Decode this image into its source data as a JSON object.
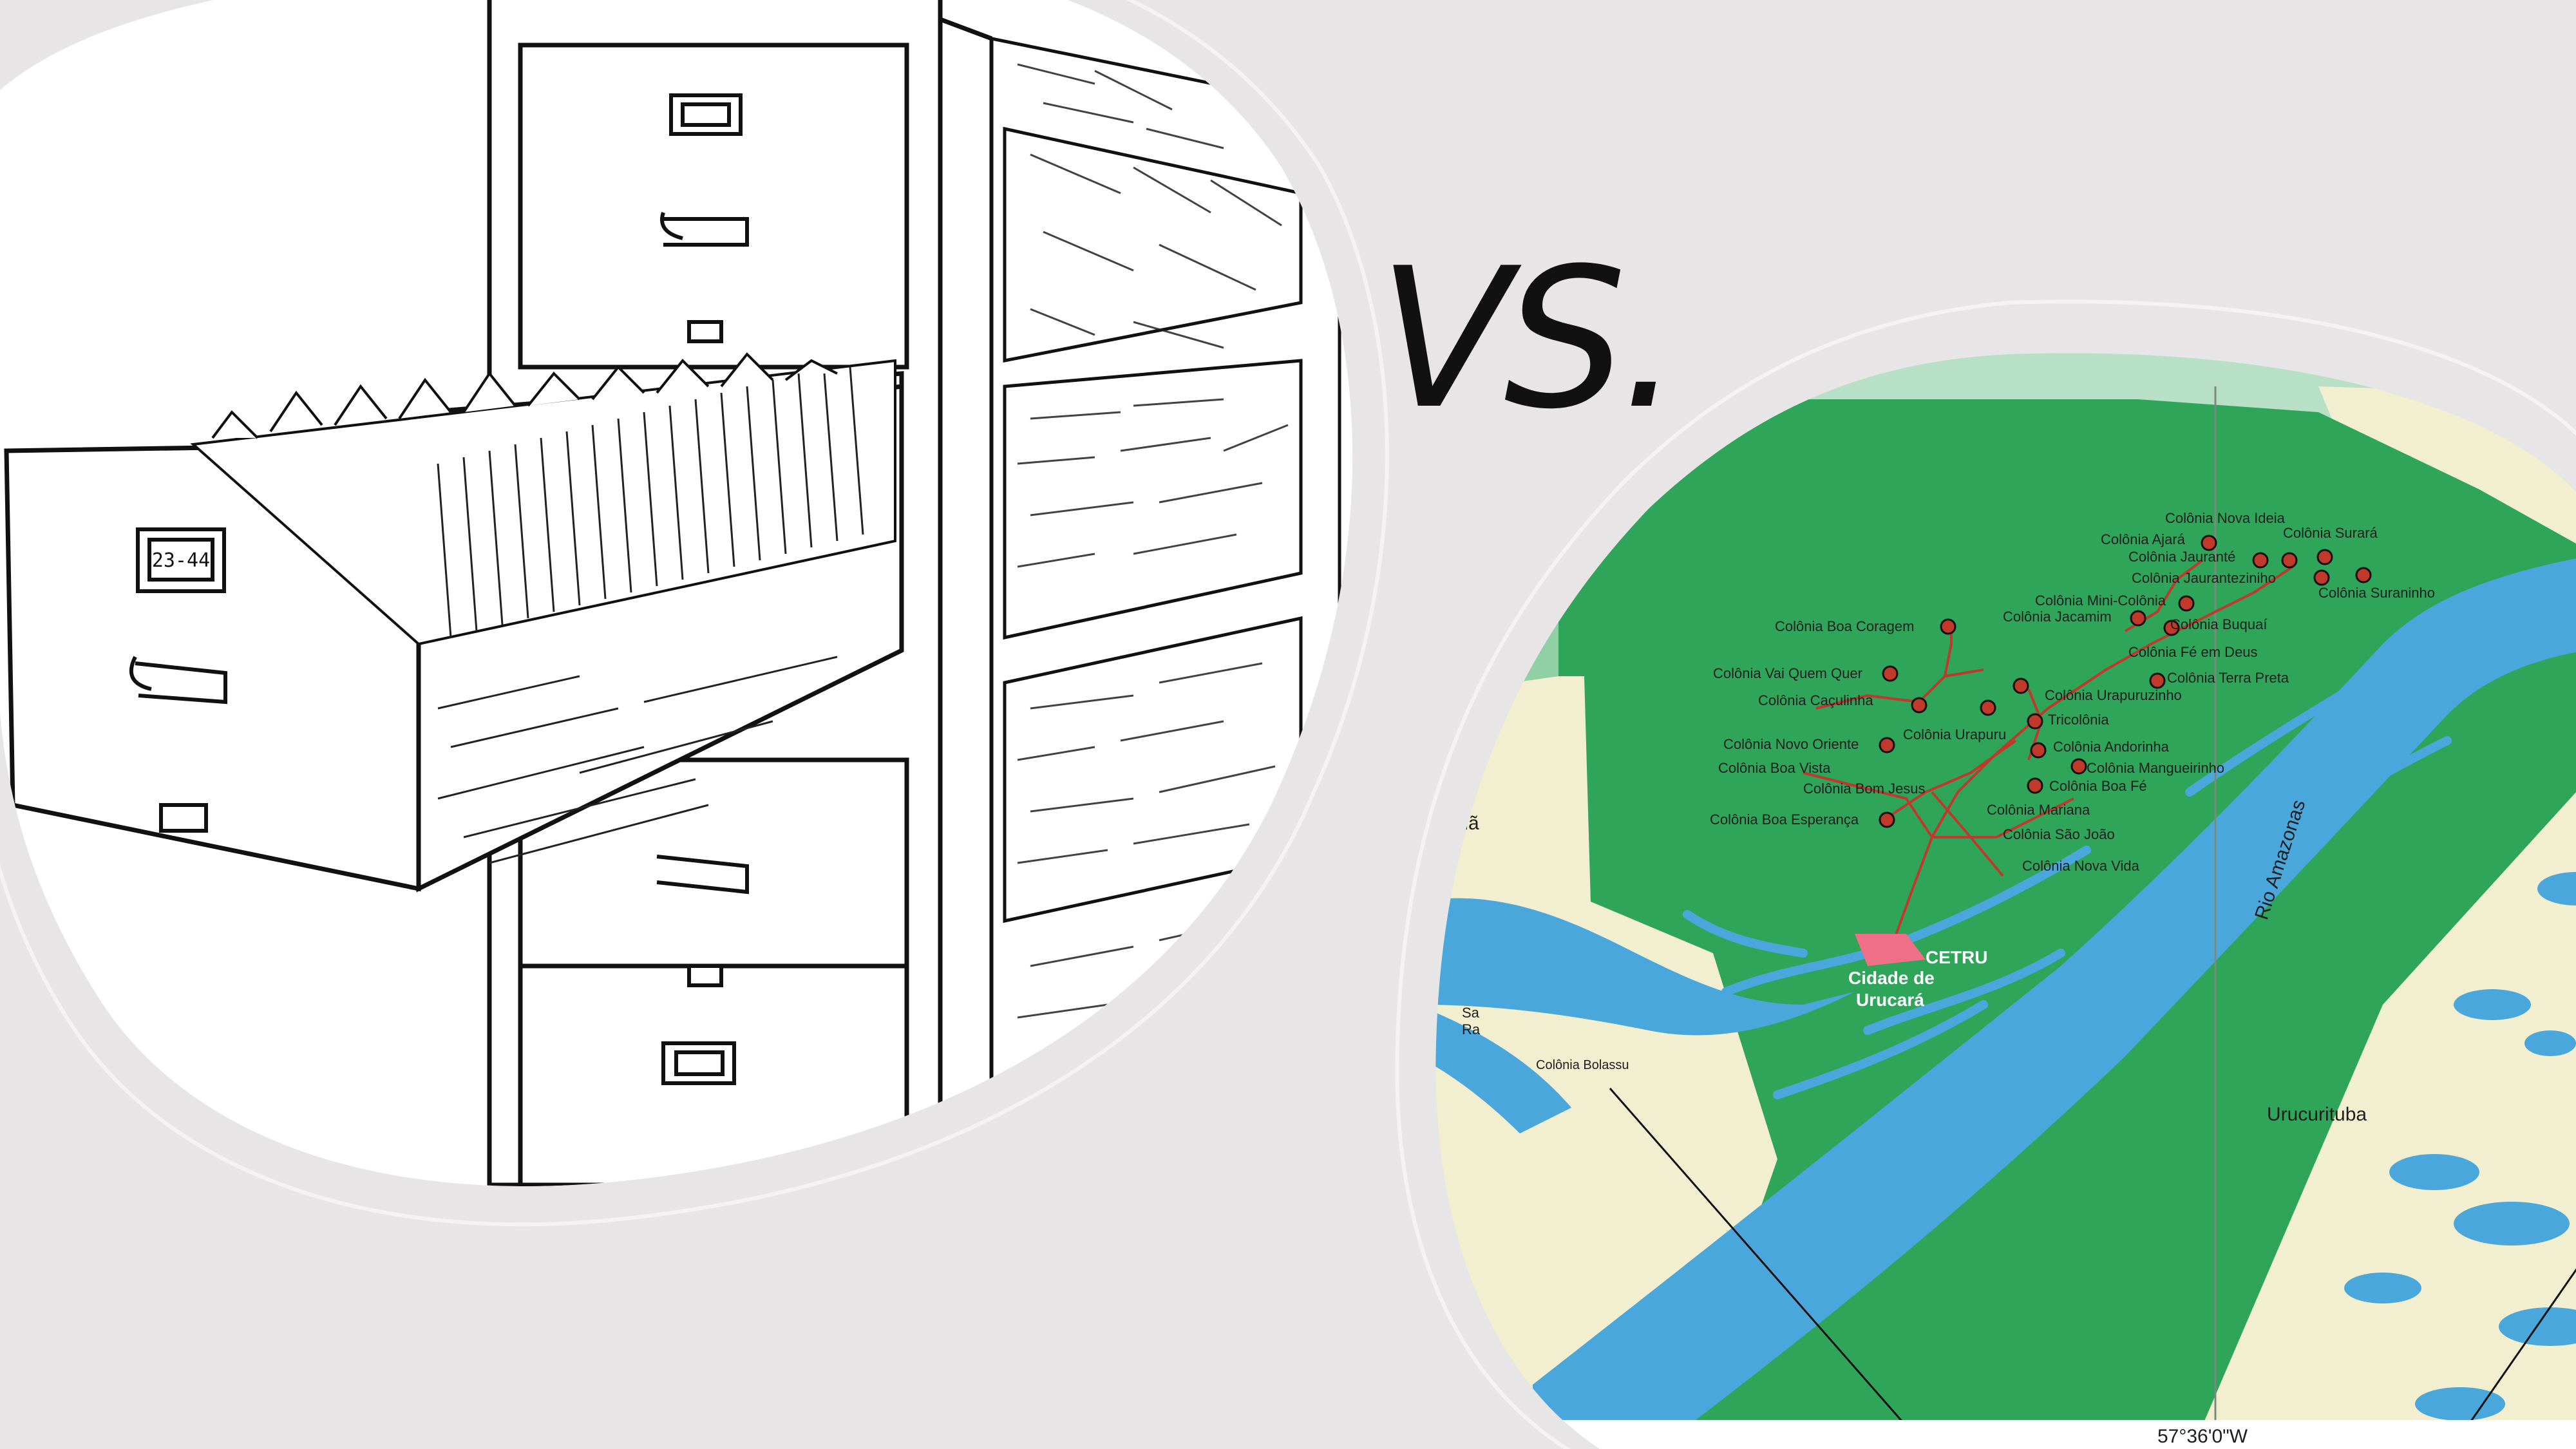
{
  "heading": {
    "vs_text": "VS."
  },
  "colors": {
    "background": "#e7e5e6",
    "forest_green": "#2fa55a",
    "river_blue": "#4aa7dc",
    "land_cream": "#f1efcf",
    "road_red": "#c0392b"
  },
  "left_image": {
    "drawer_tag": "23-44",
    "subject": "filing-cabinet"
  },
  "map": {
    "colonies": [
      "Colônia Nova Ideia",
      "Colônia Ajará",
      "Colônia Jauranté",
      "Colônia Surará",
      "Colônia Jauranteziniho",
      "Colônia Mini-Colônia",
      "Colônia Jacamim",
      "Colônia Buquaí",
      "Colônia Suraninho",
      "Colônia Boa Coragem",
      "Colônia Fé em Deus",
      "Colônia Vai Quem Quer",
      "Colônia Terra Preta",
      "Colônia Caçulinha",
      "Colônia Urapuruzinho",
      "Tricolônia",
      "Colônia Urapuru",
      "Colônia Novo Oriente",
      "Colônia Andorinha",
      "Colônia Boa Vista",
      "Colônia Mangueirinho",
      "Colônia Bom Jesus",
      "Colônia Boa Fé",
      "Colônia Mariana",
      "Colônia Boa Esperança",
      "Colônia São João",
      "Colônia Nova Vida"
    ],
    "cetru": "CETRU",
    "city_line1": "Cidade de",
    "city_line2": "Urucará",
    "river": "Rio Amazonas",
    "place_right": "Urucurituba",
    "place_left_partial": "tumã",
    "place_left2_line1": "Sa",
    "place_left2_line2": "Ra",
    "colony_bom_jesus": "Colônia Bom Jesus",
    "colony_bolassu": "Colônia Bolassu",
    "coordinate": "57°36'0\"W"
  }
}
